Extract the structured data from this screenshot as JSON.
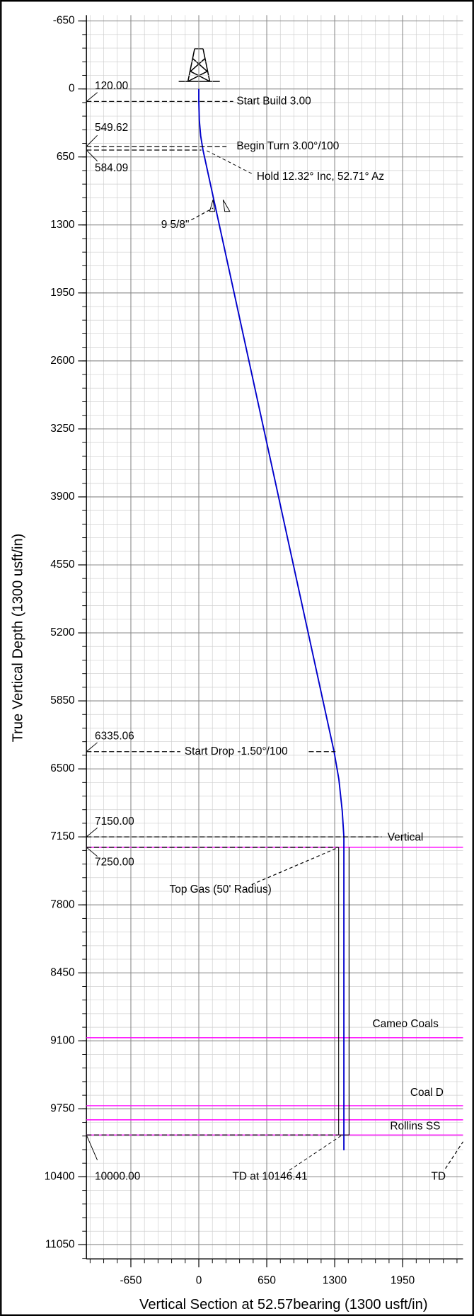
{
  "chart_data": {
    "type": "line",
    "x_label": "Vertical Section at 52.57bearing (1300 usft/in)",
    "y_label": "True Vertical Depth (1300 usft/in)",
    "xlim": [
      -1075,
      2528
    ],
    "ylim": [
      -706,
      11185
    ],
    "y_inverted": true,
    "xticks": [
      -650,
      0,
      650,
      1300,
      1950
    ],
    "yticks": [
      -650,
      0,
      650,
      1300,
      1950,
      2600,
      3250,
      3900,
      4550,
      5200,
      5850,
      6500,
      7150,
      7800,
      8450,
      9100,
      9750,
      10400,
      11050
    ],
    "grid": true,
    "series": [
      {
        "color": "#0000cc",
        "x": [
          0,
          0,
          5,
          18,
          40,
          1294,
          1340,
          1372,
          1388,
          1388
        ],
        "values": [
          0,
          120,
          300,
          450,
          584,
          6335,
          6600,
          6900,
          7150,
          10146
        ]
      }
    ],
    "formation_color": "#ff00ff",
    "formations": [
      {
        "name": "Cameo Coals",
        "tvd": 9070
      },
      {
        "name": "Coal D",
        "tvd": 9720
      },
      {
        "name": "Rollins SS",
        "tvd": 9855
      },
      {
        "name": "TD",
        "tvd": 10000
      }
    ],
    "target": {
      "label": "Top Gas (50' Radius)",
      "x": [
        1338,
        1438
      ],
      "top": 7250,
      "bottom": 10000
    },
    "casing": {
      "label": "9 5/8\"",
      "tvd": 1139,
      "vs": 200
    },
    "annotations": [
      {
        "tvd": 120,
        "label": "120.00",
        "text": "Start Build 3.00"
      },
      {
        "tvd": 549.62,
        "label": "549.62",
        "text": "Begin Turn 3.00°/100"
      },
      {
        "tvd": 584.09,
        "label": "584.09",
        "text": "Hold 12.32° Inc, 52.71° Az"
      },
      {
        "tvd": 6335.06,
        "label": "6335.06",
        "text": "Start Drop -1.50°/100"
      },
      {
        "tvd": 7150,
        "label": "7150.00",
        "text": "Vertical"
      },
      {
        "tvd": 7250,
        "label": "7250.00",
        "text": null
      },
      {
        "tvd": 10000,
        "label": "10000.00",
        "text": "TD at 10146.41"
      }
    ]
  }
}
